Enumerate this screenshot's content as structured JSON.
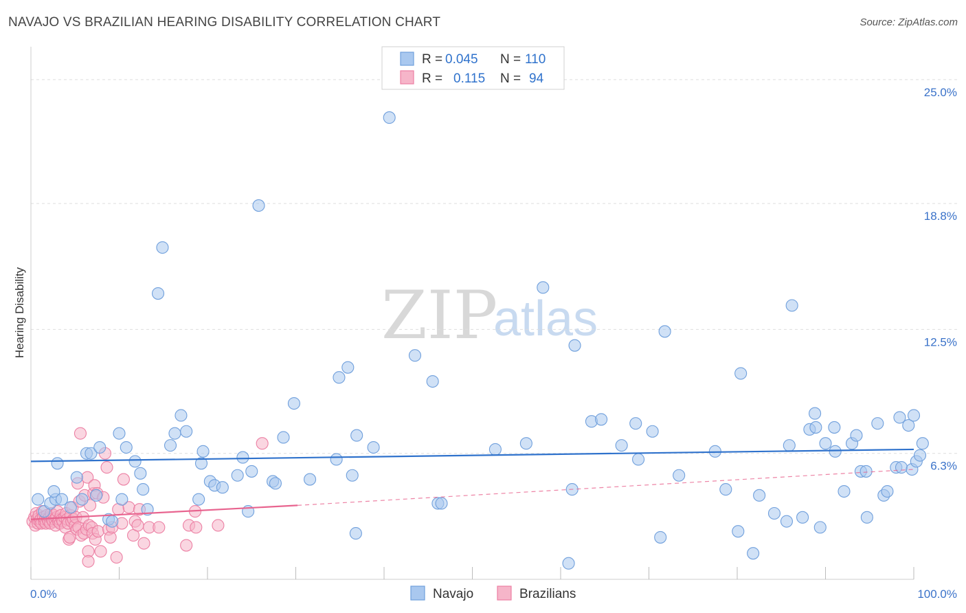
{
  "header": {
    "title": "NAVAJO VS BRAZILIAN HEARING DISABILITY CORRELATION CHART",
    "source": "Source: ZipAtlas.com"
  },
  "watermark": {
    "zip": "ZIP",
    "atlas": "atlas"
  },
  "legend_stats": {
    "navajo": {
      "r_label": "R =",
      "r_value": "0.045",
      "n_label": "N =",
      "n_value": "110"
    },
    "brazilians": {
      "r_label": "R =",
      "r_value": "0.115",
      "n_label": "N =",
      "n_value": "94"
    }
  },
  "colors": {
    "navajo_fill": "#a9c8ef",
    "navajo_stroke": "#6f9fdc",
    "navajo_line": "#2f72cc",
    "brazilians_fill": "#f6b5c9",
    "brazilians_stroke": "#ec7fa3",
    "brazilians_line": "#e8648f",
    "tick_text": "#3a72c9",
    "grid": "#dddddd"
  },
  "chart_data": {
    "type": "scatter",
    "title": "NAVAJO VS BRAZILIAN HEARING DISABILITY CORRELATION CHART",
    "xlabel": "",
    "ylabel": "Hearing Disability",
    "xlim": [
      0,
      100
    ],
    "ylim": [
      0,
      26.3
    ],
    "x_tick_labels": [
      "0.0%",
      "100.0%"
    ],
    "y_ticks": [
      6.3,
      12.5,
      18.8,
      25.0
    ],
    "y_tick_labels": [
      "6.3%",
      "12.5%",
      "18.8%",
      "25.0%"
    ],
    "grid": "horizontal dashed",
    "legend_position": "bottom-center",
    "series": [
      {
        "name": "Navajo",
        "r": 0.045,
        "n": 110,
        "trend": {
          "x0": 0,
          "y0": 5.9,
          "x1": 100,
          "y1": 6.5
        },
        "points": [
          [
            0.8,
            4.0
          ],
          [
            1.5,
            3.4
          ],
          [
            2.2,
            3.8
          ],
          [
            2.8,
            4.0
          ],
          [
            3.0,
            5.8
          ],
          [
            2.6,
            4.4
          ],
          [
            3.5,
            4.0
          ],
          [
            4.5,
            3.6
          ],
          [
            5.2,
            5.1
          ],
          [
            5.8,
            4.0
          ],
          [
            6.3,
            6.3
          ],
          [
            6.8,
            6.3
          ],
          [
            7.4,
            4.2
          ],
          [
            7.8,
            6.6
          ],
          [
            8.8,
            3.0
          ],
          [
            9.2,
            2.9
          ],
          [
            10.0,
            7.3
          ],
          [
            10.3,
            4.0
          ],
          [
            10.8,
            6.6
          ],
          [
            11.8,
            5.9
          ],
          [
            12.4,
            5.3
          ],
          [
            12.7,
            4.5
          ],
          [
            13.2,
            3.5
          ],
          [
            14.4,
            14.3
          ],
          [
            14.9,
            16.6
          ],
          [
            15.8,
            6.7
          ],
          [
            16.3,
            7.3
          ],
          [
            17.0,
            8.2
          ],
          [
            17.6,
            7.4
          ],
          [
            19.0,
            4.0
          ],
          [
            19.3,
            5.8
          ],
          [
            19.5,
            6.4
          ],
          [
            20.3,
            4.9
          ],
          [
            20.8,
            4.7
          ],
          [
            21.7,
            4.6
          ],
          [
            23.4,
            5.2
          ],
          [
            24.0,
            6.1
          ],
          [
            24.6,
            3.4
          ],
          [
            25.0,
            5.4
          ],
          [
            25.8,
            18.7
          ],
          [
            27.4,
            4.9
          ],
          [
            27.7,
            4.8
          ],
          [
            28.6,
            7.1
          ],
          [
            29.8,
            8.8
          ],
          [
            31.6,
            5.0
          ],
          [
            34.6,
            6.0
          ],
          [
            34.9,
            10.1
          ],
          [
            35.9,
            10.6
          ],
          [
            36.4,
            5.2
          ],
          [
            36.8,
            2.3
          ],
          [
            36.9,
            7.2
          ],
          [
            38.8,
            6.6
          ],
          [
            40.6,
            23.1
          ],
          [
            43.5,
            11.2
          ],
          [
            45.5,
            9.9
          ],
          [
            46.1,
            3.8
          ],
          [
            46.5,
            3.8
          ],
          [
            52.6,
            6.5
          ],
          [
            56.1,
            6.8
          ],
          [
            58.0,
            14.6
          ],
          [
            60.9,
            0.8
          ],
          [
            61.3,
            4.5
          ],
          [
            61.6,
            11.7
          ],
          [
            63.5,
            7.9
          ],
          [
            64.6,
            8.0
          ],
          [
            66.9,
            6.7
          ],
          [
            68.5,
            7.8
          ],
          [
            68.8,
            6.0
          ],
          [
            70.4,
            7.4
          ],
          [
            71.3,
            2.1
          ],
          [
            71.8,
            12.4
          ],
          [
            73.4,
            5.2
          ],
          [
            77.5,
            6.4
          ],
          [
            78.7,
            4.5
          ],
          [
            80.1,
            2.4
          ],
          [
            80.4,
            10.3
          ],
          [
            81.8,
            1.3
          ],
          [
            82.5,
            4.2
          ],
          [
            84.2,
            3.3
          ],
          [
            85.6,
            2.9
          ],
          [
            85.9,
            6.7
          ],
          [
            86.2,
            13.7
          ],
          [
            87.4,
            3.1
          ],
          [
            88.2,
            7.5
          ],
          [
            88.8,
            8.3
          ],
          [
            88.9,
            7.6
          ],
          [
            89.4,
            2.6
          ],
          [
            90.0,
            6.8
          ],
          [
            91.0,
            7.6
          ],
          [
            91.1,
            6.4
          ],
          [
            92.1,
            4.4
          ],
          [
            93.0,
            6.8
          ],
          [
            93.5,
            7.2
          ],
          [
            94.0,
            5.4
          ],
          [
            94.6,
            5.4
          ],
          [
            94.7,
            3.1
          ],
          [
            95.9,
            7.8
          ],
          [
            96.6,
            4.2
          ],
          [
            97.0,
            4.4
          ],
          [
            98.0,
            5.6
          ],
          [
            98.6,
            5.6
          ],
          [
            99.4,
            7.7
          ],
          [
            99.8,
            5.5
          ],
          [
            100.0,
            8.2
          ],
          [
            100.3,
            5.9
          ],
          [
            100.7,
            6.2
          ],
          [
            101.0,
            6.8
          ],
          [
            98.4,
            8.1
          ]
        ]
      },
      {
        "name": "Brazilians",
        "r": 0.115,
        "n": 94,
        "trend": {
          "x0": 0,
          "y0": 3.0,
          "x1": 30.2,
          "y1": 3.7
        },
        "trend_extension": {
          "x0": 30.2,
          "y0": 3.7,
          "x1": 100,
          "y1": 5.5
        },
        "points": [
          [
            0.2,
            2.9
          ],
          [
            0.4,
            3.1
          ],
          [
            0.5,
            2.7
          ],
          [
            0.6,
            3.3
          ],
          [
            0.7,
            3.0
          ],
          [
            0.8,
            2.8
          ],
          [
            0.9,
            3.2
          ],
          [
            1.0,
            2.9
          ],
          [
            1.1,
            3.0
          ],
          [
            1.2,
            2.8
          ],
          [
            1.3,
            3.4
          ],
          [
            1.4,
            3.1
          ],
          [
            1.5,
            2.9
          ],
          [
            1.6,
            3.0
          ],
          [
            1.7,
            2.8
          ],
          [
            1.8,
            3.2
          ],
          [
            1.9,
            3.0
          ],
          [
            2.0,
            2.9
          ],
          [
            2.1,
            3.1
          ],
          [
            2.2,
            2.8
          ],
          [
            2.3,
            3.3
          ],
          [
            2.4,
            3.0
          ],
          [
            2.5,
            2.9
          ],
          [
            2.6,
            3.2
          ],
          [
            2.7,
            3.0
          ],
          [
            2.8,
            2.7
          ],
          [
            2.9,
            3.1
          ],
          [
            3.0,
            3.4
          ],
          [
            3.1,
            2.9
          ],
          [
            3.2,
            3.0
          ],
          [
            3.3,
            2.8
          ],
          [
            3.4,
            3.2
          ],
          [
            3.5,
            3.0
          ],
          [
            3.6,
            2.9
          ],
          [
            3.8,
            3.1
          ],
          [
            3.9,
            2.6
          ],
          [
            4.0,
            3.3
          ],
          [
            4.1,
            3.0
          ],
          [
            4.2,
            2.8
          ],
          [
            4.3,
            2.0
          ],
          [
            4.4,
            2.1
          ],
          [
            4.5,
            3.2
          ],
          [
            4.6,
            2.9
          ],
          [
            4.7,
            3.6
          ],
          [
            4.8,
            3.0
          ],
          [
            5.0,
            2.7
          ],
          [
            5.1,
            3.1
          ],
          [
            5.2,
            2.5
          ],
          [
            5.3,
            4.8
          ],
          [
            5.4,
            2.6
          ],
          [
            5.5,
            3.9
          ],
          [
            5.6,
            7.3
          ],
          [
            5.7,
            2.2
          ],
          [
            5.9,
            3.1
          ],
          [
            6.0,
            2.3
          ],
          [
            6.1,
            4.2
          ],
          [
            6.3,
            2.5
          ],
          [
            6.4,
            5.1
          ],
          [
            6.5,
            1.4
          ],
          [
            6.5,
            0.9
          ],
          [
            6.6,
            2.7
          ],
          [
            6.7,
            3.7
          ],
          [
            6.9,
            2.6
          ],
          [
            7.0,
            2.3
          ],
          [
            7.1,
            4.3
          ],
          [
            7.2,
            4.7
          ],
          [
            7.3,
            2.0
          ],
          [
            7.5,
            4.3
          ],
          [
            7.6,
            2.4
          ],
          [
            7.9,
            1.4
          ],
          [
            8.2,
            4.1
          ],
          [
            8.4,
            6.3
          ],
          [
            8.6,
            5.6
          ],
          [
            8.8,
            2.5
          ],
          [
            9.0,
            2.1
          ],
          [
            9.2,
            2.6
          ],
          [
            9.7,
            1.1
          ],
          [
            9.9,
            3.5
          ],
          [
            10.3,
            2.8
          ],
          [
            10.5,
            5.0
          ],
          [
            11.1,
            3.6
          ],
          [
            11.6,
            2.2
          ],
          [
            11.8,
            2.9
          ],
          [
            12.1,
            2.7
          ],
          [
            12.3,
            3.5
          ],
          [
            12.8,
            1.8
          ],
          [
            13.4,
            2.6
          ],
          [
            14.5,
            2.6
          ],
          [
            17.6,
            1.7
          ],
          [
            17.9,
            2.7
          ],
          [
            18.6,
            3.4
          ],
          [
            18.7,
            2.6
          ],
          [
            21.2,
            2.7
          ],
          [
            26.2,
            6.8
          ]
        ]
      }
    ]
  }
}
